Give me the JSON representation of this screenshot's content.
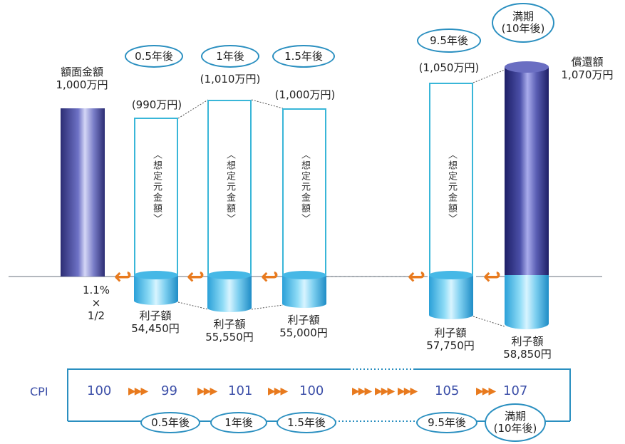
{
  "face_value": {
    "line1": "額面金額",
    "line2": "1,000万円"
  },
  "top_ovals": [
    "0.5年後",
    "1年後",
    "1.5年後"
  ],
  "right_ovals": {
    "oval_a": "9.5年後",
    "maturity_line1": "満期",
    "maturity_line2": "(10年後)"
  },
  "principals": [
    "(990万円)",
    "(1,010万円)",
    "(1,000万円)",
    "(1,050万円)"
  ],
  "redemption": {
    "line1": "償還額",
    "line2": "1,070万円"
  },
  "notional_label": "〈想定元金額〉",
  "rate": {
    "line1": "1.1%",
    "line2": "×",
    "line3": "1/2"
  },
  "interest": [
    {
      "label": "利子額",
      "value": "54,450円"
    },
    {
      "label": "利子額",
      "value": "55,550円"
    },
    {
      "label": "利子額",
      "value": "55,000円"
    },
    {
      "label": "利子額",
      "value": "57,750円"
    },
    {
      "label": "利子額",
      "value": "58,850円"
    }
  ],
  "cpi": {
    "label": "CPI",
    "values": [
      "100",
      "99",
      "101",
      "100",
      "105",
      "107"
    ],
    "arrow_glyph": "▶▶▶"
  },
  "bottom_ovals": [
    "0.5年後",
    "1年後",
    "1.5年後",
    "9.5年後"
  ],
  "bottom_maturity": {
    "line1": "満期",
    "line2": "(10年後)"
  },
  "colors": {
    "accent_orange": "#e87a1e",
    "oval_border": "#2a8fc0",
    "frame_cyan": "#39b6d8",
    "cpi_blue": "#3c4fa8",
    "bar_navy": "#2c2d74"
  }
}
